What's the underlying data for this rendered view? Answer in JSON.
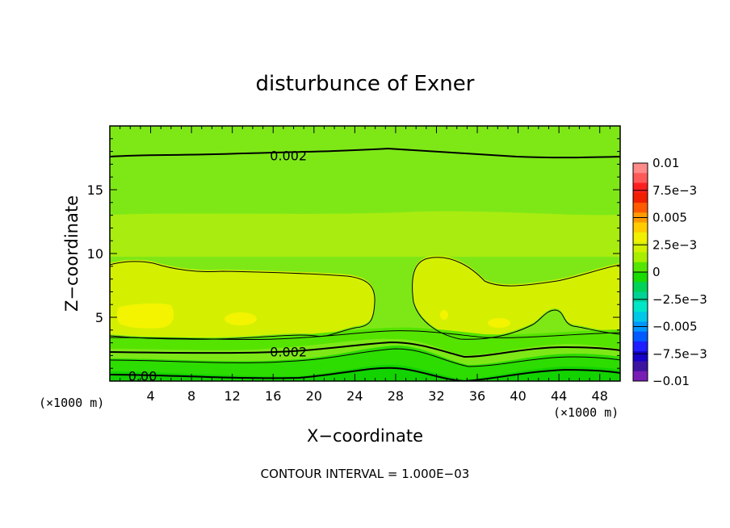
{
  "chart_data": {
    "type": "contour",
    "title": "disturbunce of Exner",
    "xlabel": "X−coordinate",
    "ylabel": "Z−coordinate",
    "x_unit": "(×1000 m)",
    "x_unit_right": "(×1000 m)",
    "xlim": [
      0,
      50
    ],
    "ylim": [
      0,
      20
    ],
    "x_ticks": [
      4,
      8,
      12,
      16,
      20,
      24,
      28,
      32,
      36,
      40,
      44,
      48
    ],
    "x_tick_labels": [
      "4",
      "8",
      "12",
      "16",
      "20",
      "24",
      "28",
      "32",
      "36",
      "40",
      "44",
      "48"
    ],
    "y_ticks": [
      5,
      10,
      15
    ],
    "y_tick_labels": [
      "5",
      "10",
      "15"
    ],
    "contour_interval_text": "CONTOUR INTERVAL = 1.000E−03",
    "contour_labels": [
      {
        "text": "0.002",
        "x": 17.5,
        "y": 17.7
      },
      {
        "text": "0.002",
        "x": 17.5,
        "y": 2.3
      },
      {
        "text": "0.00",
        "x": 1.8,
        "y": 0.4
      }
    ],
    "colorbar": {
      "labels": [
        "0.01",
        "7.5e−3",
        "0.005",
        "2.5e−3",
        "0",
        "−2.5e−3",
        "−0.005",
        "−7.5e−3",
        "−0.01"
      ],
      "colors": [
        "#ff8a8a",
        "#ff5a5a",
        "#ff2020",
        "#f02000",
        "#ff5a00",
        "#ff9b00",
        "#ffcc00",
        "#f0f000",
        "#d2f000",
        "#a8ee00",
        "#55e600",
        "#1adc00",
        "#00d25a",
        "#00d296",
        "#00e6c8",
        "#00c8e6",
        "#0096ff",
        "#005aff",
        "#1e1eff",
        "#1400c8",
        "#3c14a0",
        "#781eb4"
      ]
    }
  }
}
